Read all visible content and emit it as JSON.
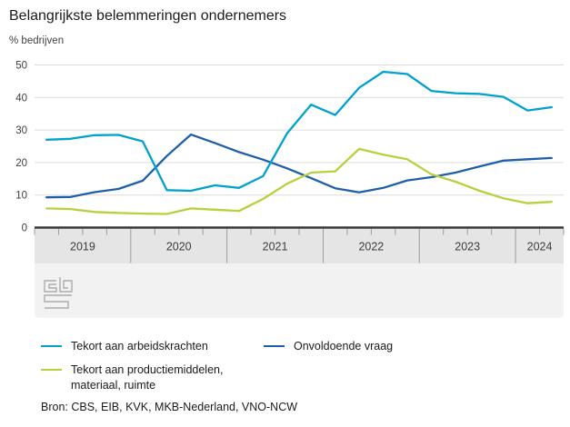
{
  "header": {
    "title": "Belangrijkste belemmeringen ondernemers",
    "subtitle": "% bedrijven"
  },
  "source": "Bron: CBS, EIB, KVK, MKB-Nederland, VNO-NCW",
  "logo": "cbs-logo",
  "colors": {
    "light_blue": "#00a1cd",
    "dark_blue": "#1f5fa9",
    "yellow_green": "#b9cf3e",
    "gridline": "#dcdcdc",
    "axis_band": "#e5e5e5",
    "footer_band": "#f2f2f2",
    "baseline": "#3a3a3a",
    "tick": "#9c9c9c",
    "axis_text": "#3d3d3d",
    "logo_gray": "#ababab"
  },
  "chart_data": {
    "type": "line",
    "title": "Belangrijkste belemmeringen ondernemers",
    "ylabel": "% bedrijven",
    "xlabel": "",
    "ylim": [
      0,
      50
    ],
    "yticks": [
      0,
      10,
      20,
      30,
      40,
      50
    ],
    "grid": true,
    "legend_position": "bottom",
    "x_unit": "quarter",
    "year_labels": [
      "2019",
      "2020",
      "2021",
      "2022",
      "2023",
      "2024"
    ],
    "categories": [
      "2019 Q1",
      "2019 Q2",
      "2019 Q3",
      "2019 Q4",
      "2020 Q1",
      "2020 Q2",
      "2020 Q3",
      "2020 Q4",
      "2021 Q1",
      "2021 Q2",
      "2021 Q3",
      "2021 Q4",
      "2022 Q1",
      "2022 Q2",
      "2022 Q3",
      "2022 Q4",
      "2023 Q1",
      "2023 Q2",
      "2023 Q3",
      "2023 Q4",
      "2024 Q1",
      "2024 Q2"
    ],
    "series": [
      {
        "name": "Tekort aan arbeidskrachten",
        "color": "#00a1cd",
        "values": [
          27,
          27.3,
          28.4,
          28.5,
          26.5,
          11.5,
          11.3,
          13,
          12.2,
          15.8,
          29,
          37.8,
          34.6,
          43,
          47.9,
          47.2,
          42,
          41.3,
          41.1,
          40.2,
          36,
          37
        ]
      },
      {
        "name": "Tekort aan productiemiddelen, materiaal, ruimte",
        "color": "#b9cf3e",
        "values": [
          5.9,
          5.7,
          4.8,
          4.5,
          4.3,
          4.2,
          5.9,
          5.5,
          5.1,
          8.8,
          13.5,
          16.9,
          17.3,
          24.2,
          22.4,
          21,
          16.4,
          14.1,
          11.3,
          9,
          7.5,
          7.9
        ]
      },
      {
        "name": "Onvoldoende vraag",
        "color": "#1f5fa9",
        "values": [
          9.3,
          9.4,
          10.9,
          11.9,
          14.4,
          22,
          28.6,
          26,
          23.2,
          20.9,
          18.2,
          15.2,
          12.1,
          10.8,
          12.2,
          14.5,
          15.5,
          16.9,
          18.8,
          20.6,
          21,
          21.4
        ]
      }
    ]
  }
}
